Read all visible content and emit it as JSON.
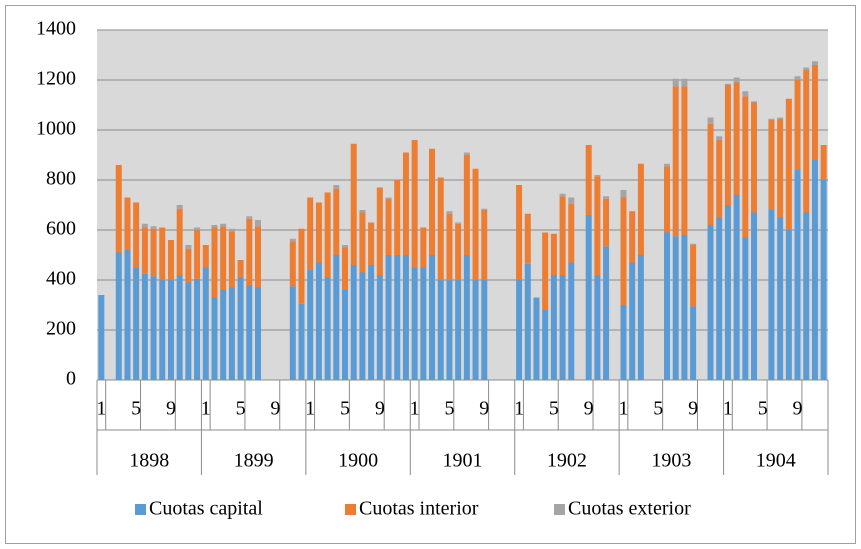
{
  "chart_data": {
    "type": "stacked-bar",
    "categories": [
      "1",
      null,
      null,
      null,
      "5",
      null,
      null,
      null,
      "9",
      null,
      null,
      null,
      "1",
      null,
      null,
      null,
      "5",
      null,
      null,
      null,
      "9",
      null,
      null,
      null,
      "1",
      null,
      null,
      null,
      "5",
      null,
      null,
      null,
      "9",
      null,
      null,
      null,
      "1",
      null,
      null,
      null,
      "5",
      null,
      null,
      null,
      "9",
      null,
      null,
      null,
      "1",
      null,
      null,
      null,
      "5",
      null,
      null,
      null,
      "9",
      null,
      null,
      null,
      "1",
      null,
      null,
      null,
      "5",
      null,
      null,
      null,
      "9",
      null,
      null,
      null,
      "1",
      null,
      null,
      null,
      "5",
      null,
      null,
      null,
      "9",
      null,
      null,
      null
    ],
    "groups": [
      "1898",
      "1899",
      "1900",
      "1901",
      "1902",
      "1903",
      "1904"
    ],
    "series": [
      {
        "name": "Cuotas capital",
        "color": "#5b9bd5",
        "values": [
          340,
          null,
          510,
          520,
          450,
          425,
          415,
          400,
          400,
          420,
          390,
          405,
          450,
          330,
          360,
          370,
          410,
          380,
          370,
          null,
          null,
          null,
          375,
          305,
          440,
          470,
          410,
          500,
          360,
          460,
          430,
          460,
          420,
          500,
          500,
          500,
          450,
          450,
          500,
          400,
          400,
          400,
          500,
          400,
          400,
          null,
          null,
          null,
          400,
          465,
          330,
          280,
          420,
          420,
          470,
          null,
          660,
          420,
          535,
          null,
          300,
          470,
          500,
          null,
          null,
          590,
          575,
          580,
          295,
          null,
          620,
          650,
          700,
          740,
          570,
          670,
          null,
          680,
          650,
          600,
          840,
          670,
          880,
          800
        ]
      },
      {
        "name": "Cuotas interior",
        "color": "#ed7d31",
        "values": [
          0,
          null,
          350,
          210,
          260,
          185,
          190,
          210,
          160,
          265,
          135,
          195,
          90,
          280,
          255,
          225,
          70,
          265,
          245,
          null,
          null,
          null,
          180,
          300,
          290,
          240,
          340,
          265,
          170,
          485,
          240,
          170,
          350,
          225,
          300,
          410,
          510,
          160,
          425,
          410,
          265,
          225,
          400,
          445,
          280,
          null,
          null,
          null,
          380,
          200,
          0,
          310,
          165,
          315,
          235,
          null,
          280,
          395,
          190,
          null,
          430,
          205,
          365,
          null,
          null,
          265,
          600,
          595,
          245,
          null,
          405,
          310,
          480,
          450,
          565,
          440,
          null,
          360,
          395,
          525,
          360,
          570,
          380,
          140
        ]
      },
      {
        "name": "Cuotas exterior",
        "color": "#a5a5a5",
        "values": [
          0,
          null,
          0,
          0,
          0,
          15,
          10,
          0,
          0,
          15,
          15,
          10,
          0,
          10,
          10,
          10,
          0,
          10,
          25,
          null,
          null,
          null,
          10,
          0,
          0,
          0,
          0,
          15,
          10,
          0,
          10,
          0,
          0,
          5,
          0,
          0,
          0,
          0,
          0,
          0,
          10,
          5,
          10,
          0,
          5,
          null,
          null,
          null,
          0,
          0,
          0,
          0,
          0,
          10,
          25,
          null,
          0,
          5,
          10,
          null,
          30,
          0,
          0,
          null,
          null,
          10,
          30,
          30,
          5,
          null,
          25,
          15,
          5,
          20,
          20,
          5,
          null,
          5,
          5,
          0,
          15,
          10,
          15,
          0
        ]
      }
    ],
    "ylim": [
      0,
      1400
    ],
    "yticks": [
      0,
      200,
      400,
      600,
      800,
      1000,
      1200,
      1400
    ],
    "grid": true,
    "legend": "bottom"
  }
}
